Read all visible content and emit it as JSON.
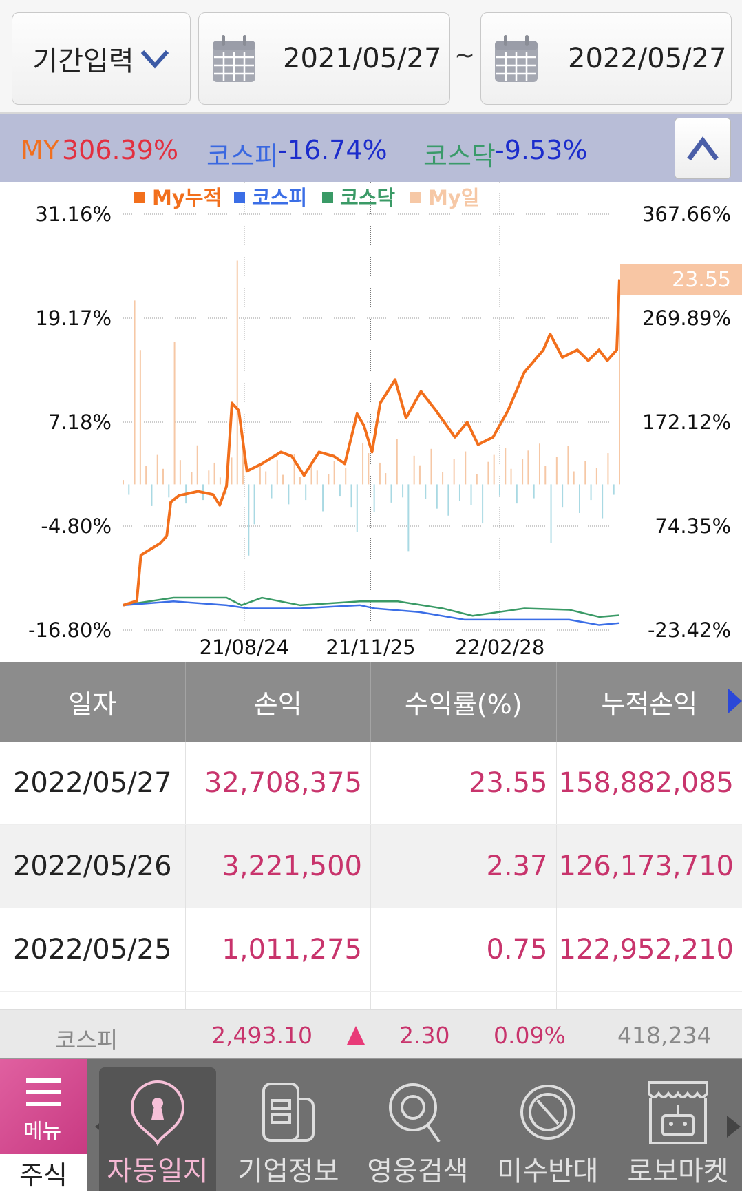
{
  "header": {
    "period_label": "기간입력",
    "start_date": "2021/05/27",
    "separator": "~",
    "end_date": "2022/05/27"
  },
  "summary": {
    "my_label": "MY",
    "my_value": "306.39%",
    "kospi_label": "코스피",
    "kospi_value": "-16.74%",
    "kosdaq_label": "코스닥",
    "kosdaq_value": "-9.53%"
  },
  "colors": {
    "my_cum": "#f26f1c",
    "kospi": "#3b6ee6",
    "kosdaq": "#3a9a66",
    "my_daily_pos": "#f6c8a6",
    "my_daily_neg": "#a9d9e3",
    "accent_pink": "#c8346c"
  },
  "chart_data": {
    "type": "line",
    "legend": [
      "My누적",
      "코스피",
      "코스닥",
      "My일"
    ],
    "legend_placement": "top",
    "left_axis": {
      "ticks": [
        "31.16%",
        "19.17%",
        "7.18%",
        "-4.80%",
        "-16.80%"
      ],
      "range": [
        -16.8,
        31.16
      ]
    },
    "right_axis": {
      "ticks": [
        "367.66%",
        "269.89%",
        "172.12%",
        "74.35%",
        "-23.42%"
      ],
      "range": [
        -23.42,
        367.66
      ]
    },
    "x_ticks": [
      {
        "label": "21/08/24",
        "date": "2021-08-24"
      },
      {
        "label": "21/11/25",
        "date": "2021-11-25"
      },
      {
        "label": "22/02/28",
        "date": "2022-02-28"
      }
    ],
    "x_range": [
      "2021-05-27",
      "2022-05-27"
    ],
    "grid": true,
    "last_value_label": "23.55",
    "series": [
      {
        "name": "My누적",
        "axis": "right",
        "points": [
          [
            "2021-05-27",
            0
          ],
          [
            "2021-06-06",
            4
          ],
          [
            "2021-06-09",
            47
          ],
          [
            "2021-06-14",
            51
          ],
          [
            "2021-06-23",
            58
          ],
          [
            "2021-06-28",
            65
          ],
          [
            "2021-07-01",
            97
          ],
          [
            "2021-07-07",
            103
          ],
          [
            "2021-07-21",
            107
          ],
          [
            "2021-08-01",
            104
          ],
          [
            "2021-08-06",
            94
          ],
          [
            "2021-08-11",
            112
          ],
          [
            "2021-08-15",
            190
          ],
          [
            "2021-08-20",
            183
          ],
          [
            "2021-08-26",
            126
          ],
          [
            "2021-09-06",
            133
          ],
          [
            "2021-09-20",
            144
          ],
          [
            "2021-09-28",
            140
          ],
          [
            "2021-10-07",
            122
          ],
          [
            "2021-10-18",
            144
          ],
          [
            "2021-10-29",
            140
          ],
          [
            "2021-11-06",
            133
          ],
          [
            "2021-11-15",
            180
          ],
          [
            "2021-11-20",
            169
          ],
          [
            "2021-11-26",
            144
          ],
          [
            "2021-12-02",
            190
          ],
          [
            "2021-12-13",
            212
          ],
          [
            "2021-12-21",
            176
          ],
          [
            "2022-01-01",
            201
          ],
          [
            "2022-01-12",
            183
          ],
          [
            "2022-01-26",
            158
          ],
          [
            "2022-02-04",
            172
          ],
          [
            "2022-02-12",
            151
          ],
          [
            "2022-02-23",
            158
          ],
          [
            "2022-03-06",
            183
          ],
          [
            "2022-03-18",
            219
          ],
          [
            "2022-04-01",
            240
          ],
          [
            "2022-04-06",
            255
          ],
          [
            "2022-04-15",
            233
          ],
          [
            "2022-04-26",
            240
          ],
          [
            "2022-05-04",
            230
          ],
          [
            "2022-05-12",
            240
          ],
          [
            "2022-05-18",
            230
          ],
          [
            "2022-05-25",
            240
          ],
          [
            "2022-05-27",
            306.39
          ]
        ]
      },
      {
        "name": "코스피",
        "axis": "right",
        "points": [
          [
            "2021-05-27",
            0
          ],
          [
            "2021-07-03",
            3.6
          ],
          [
            "2021-08-11",
            0
          ],
          [
            "2021-08-27",
            -3
          ],
          [
            "2021-10-04",
            -3
          ],
          [
            "2021-11-17",
            0
          ],
          [
            "2021-11-28",
            -3
          ],
          [
            "2021-12-31",
            -6.5
          ],
          [
            "2022-02-02",
            -13.6
          ],
          [
            "2022-03-18",
            -13.6
          ],
          [
            "2022-04-20",
            -13.6
          ],
          [
            "2022-05-12",
            -18.6
          ],
          [
            "2022-05-27",
            -16.74
          ]
        ]
      },
      {
        "name": "코스닥",
        "axis": "right",
        "points": [
          [
            "2021-05-27",
            0
          ],
          [
            "2021-07-03",
            7
          ],
          [
            "2021-08-11",
            7
          ],
          [
            "2021-08-22",
            0
          ],
          [
            "2021-09-06",
            7
          ],
          [
            "2021-10-04",
            0
          ],
          [
            "2021-11-17",
            3.6
          ],
          [
            "2021-12-15",
            3.6
          ],
          [
            "2022-01-17",
            -3
          ],
          [
            "2022-02-08",
            -10
          ],
          [
            "2022-03-18",
            -3
          ],
          [
            "2022-04-20",
            -4.3
          ],
          [
            "2022-05-12",
            -11
          ],
          [
            "2022-05-27",
            -9.53
          ]
        ]
      },
      {
        "name": "My일",
        "axis": "left",
        "type": "bar",
        "values": [
          0.5,
          -1.2,
          21.2,
          15.5,
          2.1,
          -2.5,
          3.4,
          1.8,
          -1.5,
          16.4,
          2.8,
          -2.2,
          1.4,
          4.5,
          -1.8,
          1.6,
          2.5,
          0.8,
          -1.2,
          3.1,
          25.8,
          5.2,
          -8.2,
          -4.6,
          2.2,
          1.5,
          -1.6,
          2.8,
          1.1,
          -2.3,
          3.5,
          0.9,
          -1.8,
          2.4,
          1.6,
          -3.1,
          1.2,
          2.7,
          -1.4,
          1.9,
          -2.6,
          -5.5,
          4.8,
          3.6,
          -3.2,
          2.5,
          1.3,
          -2.1,
          5.2,
          -1.5,
          -7.7,
          3.3,
          2.2,
          -1.7,
          4.1,
          -2.8,
          1.4,
          -3.6,
          2.9,
          -1.9,
          3.8,
          -2.4,
          1.2,
          -4.5,
          2.6,
          3.4,
          -1.3,
          4.2,
          1.8,
          -2.2,
          2.9,
          3.9,
          -1.6,
          4.7,
          2.1,
          -6.8,
          3.2,
          -2.6,
          4.4,
          1.5,
          -3.3,
          2.7,
          -1.8,
          1.9,
          -3.9,
          3.6,
          -1.2,
          23.55
        ]
      }
    ]
  },
  "table": {
    "headers": [
      "일자",
      "손익",
      "수익률(%)",
      "누적손익"
    ],
    "rows": [
      [
        "2022/05/27",
        "32,708,375",
        "23.55",
        "158,882,085"
      ],
      [
        "2022/05/26",
        "3,221,500",
        "2.37",
        "126,173,710"
      ],
      [
        "2022/05/25",
        "1,011,275",
        "0.75",
        "122,952,210"
      ]
    ]
  },
  "ticker": {
    "name": "코스피",
    "price": "2,493.10",
    "change_icon": "up-triangle",
    "change": "2.30",
    "rate": "0.09%",
    "volume": "418,234"
  },
  "nav": {
    "menu_label": "메뉴",
    "category": "주식",
    "items": [
      "자동일지",
      "기업정보",
      "영웅검색",
      "미수반대",
      "로보마켓"
    ]
  }
}
